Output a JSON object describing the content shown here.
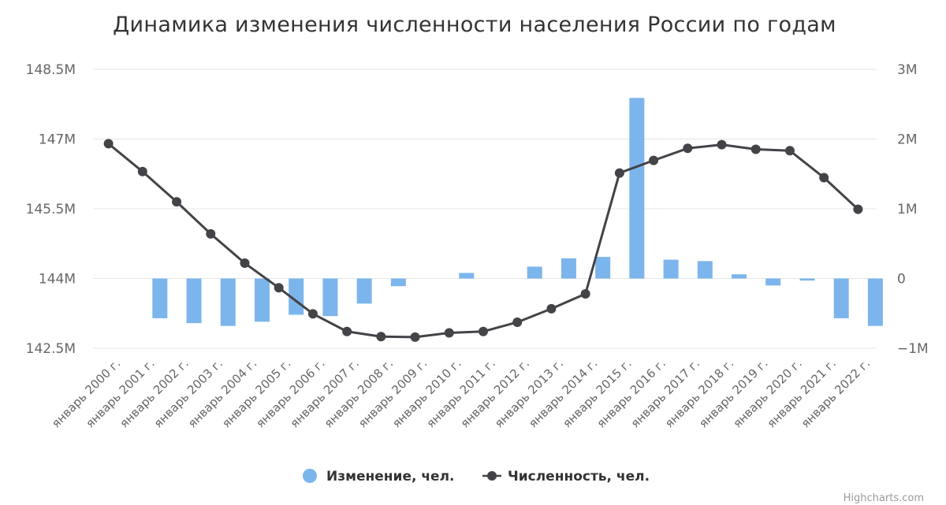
{
  "chart_data": {
    "type": "bar+line",
    "title": "Динамика изменения численности населения России по годам",
    "categories": [
      "январь 2000 г.",
      "январь 2001 г.",
      "январь 2002 г.",
      "январь 2003 г.",
      "январь 2004 г.",
      "январь 2005 г.",
      "январь 2006 г.",
      "январь 2007 г.",
      "январь 2008 г.",
      "январь 2009 г.",
      "январь 2010 г.",
      "январь 2011 г.",
      "январь 2012 г.",
      "январь 2013 г.",
      "январь 2014 г.",
      "январь 2015 г.",
      "январь 2016 г.",
      "январь 2017 г.",
      "январь 2018 г.",
      "январь 2019 г.",
      "январь 2020 г.",
      "январь 2021 г.",
      "январь 2022 г."
    ],
    "left_axis": {
      "ticks": [
        "148.5M",
        "147M",
        "145.5M",
        "144M",
        "142.5M"
      ],
      "min": 142500000,
      "max": 148500000
    },
    "right_axis": {
      "ticks": [
        "3M",
        "2M",
        "1M",
        "0",
        "−1M"
      ],
      "min": -1000000,
      "max": 3000000
    },
    "series": [
      {
        "name": "Изменение, чел.",
        "type": "bar",
        "axis": "right",
        "color": "#7cb5ec",
        "values": [
          0,
          -570000,
          -640000,
          -680000,
          -620000,
          -520000,
          -540000,
          -360000,
          -110000,
          0,
          80000,
          0,
          170000,
          290000,
          310000,
          2590000,
          270000,
          250000,
          60000,
          -100000,
          -30000,
          -570000,
          -680000
        ]
      },
      {
        "name": "Численность, чел.",
        "type": "line",
        "axis": "left",
        "color": "#434348",
        "values": [
          146900000,
          146300000,
          145650000,
          144960000,
          144330000,
          143800000,
          143240000,
          142860000,
          142750000,
          142740000,
          142830000,
          142860000,
          143060000,
          143350000,
          143670000,
          146270000,
          146540000,
          146800000,
          146880000,
          146780000,
          146750000,
          146170000,
          145490000
        ]
      }
    ],
    "legend": {
      "position": "bottom-center"
    },
    "grid": true,
    "credit": "Highcharts.com"
  }
}
